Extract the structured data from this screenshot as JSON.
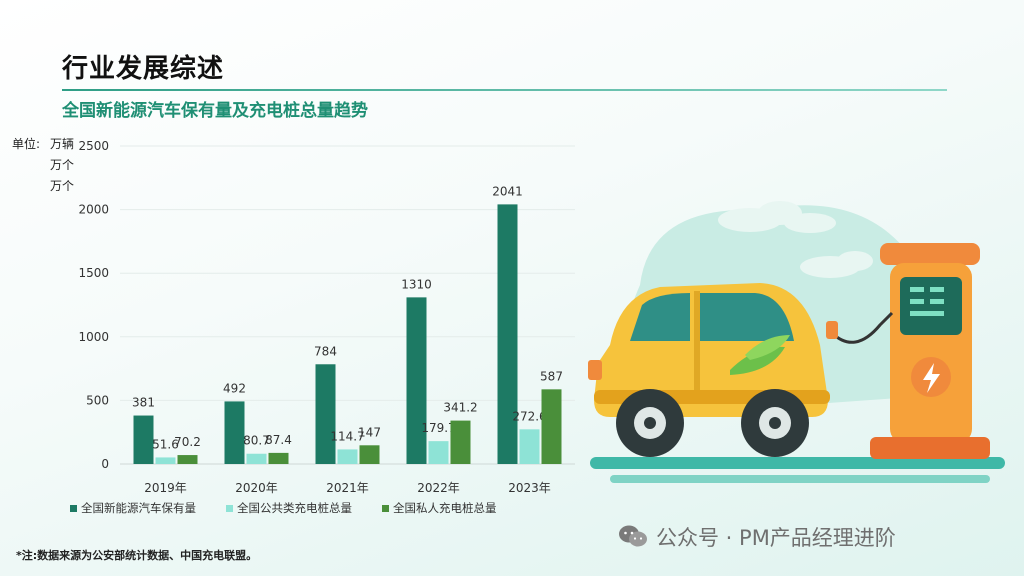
{
  "header": {
    "title": "行业发展综述",
    "subtitle": "全国新能源汽车保有量及充电桩总量趋势"
  },
  "units": {
    "label": "单位:",
    "lines": [
      "万辆",
      "万个",
      "万个"
    ]
  },
  "chart_data": {
    "type": "bar",
    "categories": [
      "2019年",
      "2020年",
      "2021年",
      "2022年",
      "2023年"
    ],
    "series": [
      {
        "name": "全国新能源汽车保有量",
        "values": [
          381,
          492,
          784,
          1310,
          2041
        ],
        "labels": [
          "381",
          "492",
          "784",
          "1310",
          "2041"
        ],
        "color": "#1d7a64"
      },
      {
        "name": "全国公共类充电桩总量",
        "values": [
          51.6,
          80.7,
          114.7,
          179.7,
          272.6
        ],
        "labels": [
          "51.6",
          "80.7",
          "114.7",
          "179.7",
          "272.6"
        ],
        "color": "#8ee3d6"
      },
      {
        "name": "全国私人充电桩总量",
        "values": [
          70.2,
          87.4,
          147,
          341.2,
          587
        ],
        "labels": [
          "70.2",
          "87.4",
          "147",
          "341.2",
          "587"
        ],
        "color": "#4a8f3a"
      }
    ],
    "yticks": [
      "0",
      "500",
      "1000",
      "1500",
      "2000",
      "2500"
    ],
    "ylim": [
      0,
      2500
    ],
    "grid": true,
    "legend_position": "bottom"
  },
  "note": "*注:数据来源为公安部统计数据、中国充电联盟。",
  "watermark": {
    "icon": "wechat-icon",
    "text": "公众号 · PM产品经理进阶"
  },
  "illustration": {
    "icon": "ev-car-charging-illustration",
    "colors": {
      "car_body": "#f6c33c",
      "charger": "#f08a3c",
      "bubble": "#c9ece4",
      "road": "#3fb8a7"
    }
  }
}
